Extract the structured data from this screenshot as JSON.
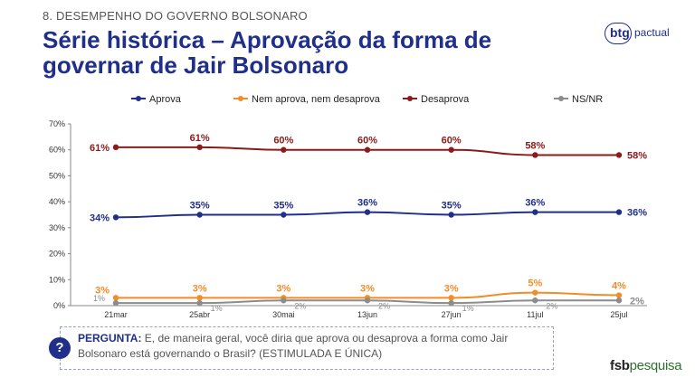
{
  "header": {
    "section": "8. DESEMPENHO DO GOVERNO BOLSONARO",
    "title": "Série histórica – Aprovação da forma de governar de Jair Bolsonaro",
    "brand_btg": "btg",
    "brand_pactual": "pactual"
  },
  "chart_data": {
    "type": "line",
    "categories": [
      "21mar",
      "25abr",
      "30mai",
      "13jun",
      "27jun",
      "11jul",
      "25jul"
    ],
    "ylim": [
      0,
      70
    ],
    "yticks": [
      "0%",
      "10%",
      "20%",
      "30%",
      "40%",
      "50%",
      "60%",
      "70%"
    ],
    "grid": false,
    "legend_position": "top",
    "series": [
      {
        "name": "Aprova",
        "color": "#1f2f8a",
        "values": [
          34,
          35,
          35,
          36,
          35,
          36,
          36
        ],
        "labels": [
          "34%",
          "35%",
          "35%",
          "36%",
          "35%",
          "36%",
          "36%"
        ]
      },
      {
        "name": "Nem aprova, nem desaprova",
        "color": "#f28c28",
        "values": [
          3,
          3,
          3,
          3,
          3,
          5,
          4
        ],
        "labels": [
          "3%",
          "3%",
          "3%",
          "3%",
          "3%",
          "5%",
          "4%"
        ]
      },
      {
        "name": "Desaprova",
        "color": "#8b1a1a",
        "values": [
          61,
          61,
          60,
          60,
          60,
          58,
          58
        ],
        "labels": [
          "61%",
          "61%",
          "60%",
          "60%",
          "60%",
          "58%",
          "58%"
        ]
      },
      {
        "name": "NS/NR",
        "color": "#8c8c8c",
        "values": [
          1,
          1,
          2,
          2,
          1,
          2,
          2
        ],
        "labels": [
          "1%",
          "1%",
          "2%",
          "2%",
          "1%",
          "2%",
          "2%"
        ]
      }
    ]
  },
  "question": {
    "icon": "?",
    "label": "PERGUNTA:",
    "text": "E, de maneira geral, você diria que aprova ou desaprova a forma como Jair Bolsonaro está governando o Brasil? (ESTIMULADA E ÚNICA)"
  },
  "footer": {
    "fsb": "fsb",
    "pesquisa": "pesquisa"
  }
}
